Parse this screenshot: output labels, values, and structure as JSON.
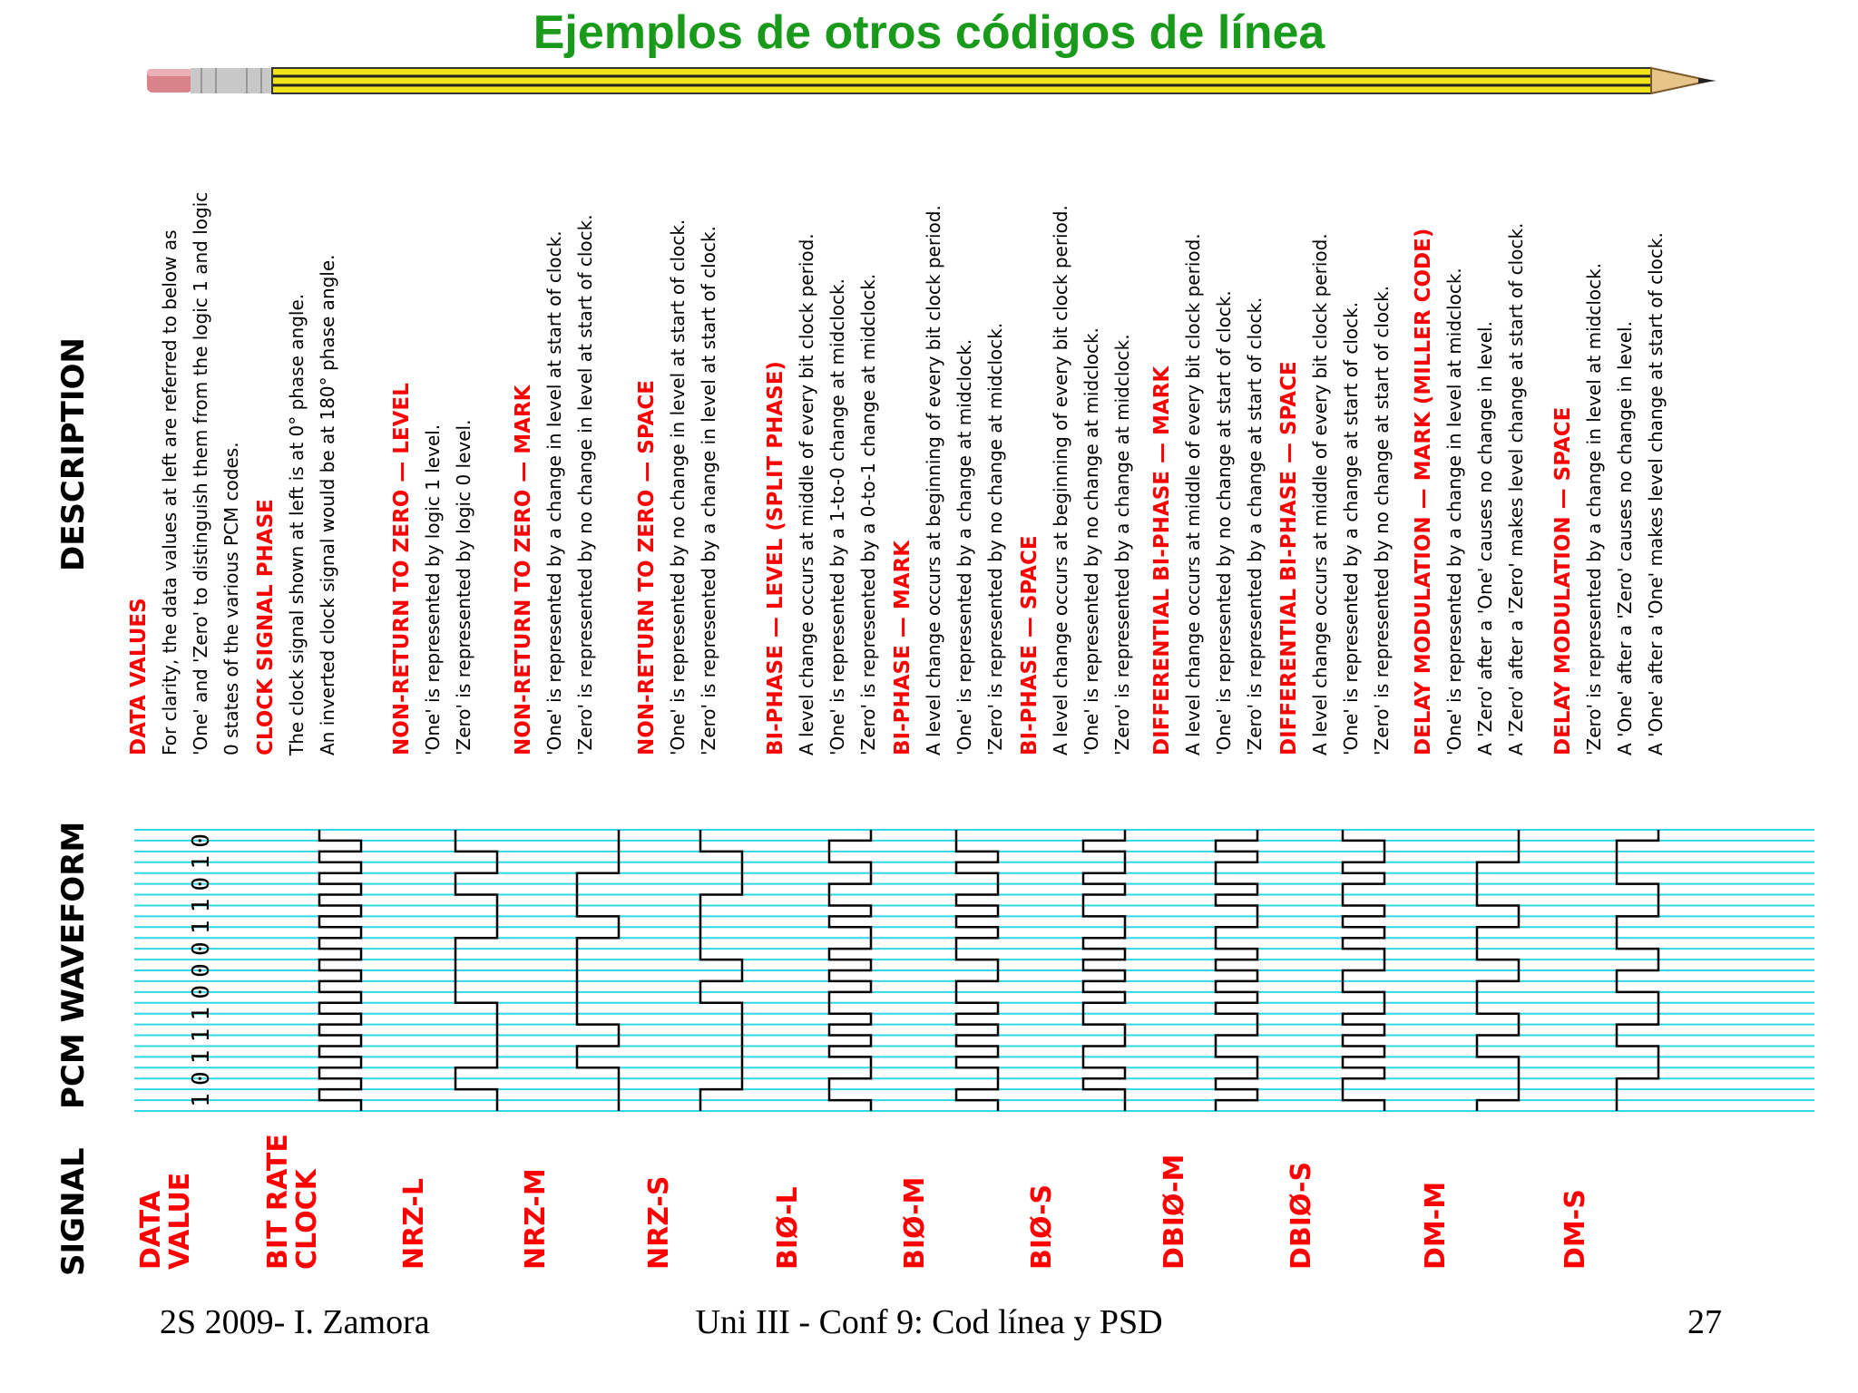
{
  "title": "Ejemplos de otros códigos de línea",
  "colors": {
    "title": "#1a9a1a",
    "red": "#ff0000",
    "grid": "#2fd8e4",
    "black": "#000000"
  },
  "headers": {
    "signal": "SIGNAL",
    "waveform": "PCM WAVEFORM",
    "description": "DESCRIPTION"
  },
  "bits": [
    1,
    0,
    1,
    1,
    1,
    0,
    0,
    0,
    1,
    1,
    0,
    1,
    0
  ],
  "signals": [
    {
      "signal": [
        "DATA",
        "VALUE"
      ],
      "waveform": "data",
      "heading": "DATA VALUES",
      "lines": [
        "For clarity, the data values at left are referred to below as",
        "'One' and 'Zero' to distinguish them from the logic 1 and logic",
        "0 states of the various PCM codes."
      ]
    },
    {
      "signal": [
        "BIT RATE",
        "CLOCK"
      ],
      "waveform": "clock",
      "heading": "CLOCK SIGNAL PHASE",
      "lines": [
        "The clock signal shown at left is at 0° phase angle.",
        "An inverted clock signal would be at 180° phase angle."
      ]
    },
    {
      "signal": [
        "NRZ-L"
      ],
      "waveform": "nrzl",
      "heading": "NON-RETURN TO ZERO — LEVEL",
      "lines": [
        "'One' is represented by logic 1 level.",
        "'Zero' is represented by logic 0 level."
      ]
    },
    {
      "signal": [
        "NRZ-M"
      ],
      "waveform": "nrzm",
      "heading": "NON-RETURN TO ZERO — MARK",
      "lines": [
        "'One' is represented by a change in level at start of clock.",
        "'Zero' is represented by no change in level at start of clock."
      ]
    },
    {
      "signal": [
        "NRZ-S"
      ],
      "waveform": "nrzs",
      "heading": "NON-RETURN TO ZERO — SPACE",
      "lines": [
        "'One' is represented by no change in level at start of clock.",
        "'Zero' is represented by a change in level at start of clock."
      ]
    },
    {
      "signal": [
        "BIØ-L"
      ],
      "waveform": "bil",
      "heading": "BI-PHASE — LEVEL (SPLIT PHASE)",
      "lines": [
        "A level change occurs at middle of every bit clock period.",
        "'One' is represented by a 1-to-0 change at midclock.",
        "'Zero' is represented by a 0-to-1 change at midclock."
      ]
    },
    {
      "signal": [
        "BIØ-M"
      ],
      "waveform": "bim",
      "heading": "BI-PHASE — MARK",
      "lines": [
        "A level change occurs at beginning of every bit clock period.",
        "'One' is represented by a change at midclock.",
        "'Zero' is represented by no change at midclock."
      ]
    },
    {
      "signal": [
        "BIØ-S"
      ],
      "waveform": "bis",
      "heading": "BI-PHASE — SPACE",
      "lines": [
        "A level change occurs at beginning of every bit clock period.",
        "'One' is represented by no change at midclock.",
        "'Zero' is represented by a change at midclock."
      ]
    },
    {
      "signal": [
        "DBIØ-M"
      ],
      "waveform": "dbim",
      "heading": "DIFFERENTIAL BI-PHASE — MARK",
      "lines": [
        "A level change occurs at middle of every bit clock period.",
        "'One' is represented by no change at start of clock.",
        "'Zero' is represented by a change at start of clock."
      ]
    },
    {
      "signal": [
        "DBIØ-S"
      ],
      "waveform": "dbis",
      "heading": "DIFFERENTIAL BI-PHASE — SPACE",
      "lines": [
        "A level change occurs at middle of every bit clock period.",
        "'One' is represented by a change at start of clock.",
        "'Zero' is represented by no change at start of clock."
      ]
    },
    {
      "signal": [
        "DM-M"
      ],
      "waveform": "dmm",
      "heading": "DELAY MODULATION — MARK (MILLER CODE)",
      "lines": [
        "'One' is represented by a change in level at midclock.",
        "A 'Zero' after a 'One' causes no change in level.",
        "A 'Zero' after a 'Zero' makes level change at start of clock."
      ]
    },
    {
      "signal": [
        "DM-S"
      ],
      "waveform": "dms",
      "heading": "DELAY MODULATION — SPACE",
      "lines": [
        "'Zero' is represented by a change in level at midclock.",
        "A 'One' after a 'Zero' causes no change in level.",
        "A 'One' after a 'One' makes level change at start of clock."
      ]
    }
  ],
  "footer": {
    "left": "2S 2009- I. Zamora",
    "center": "Uni III - Conf 9: Cod línea y PSD",
    "right": "27"
  }
}
